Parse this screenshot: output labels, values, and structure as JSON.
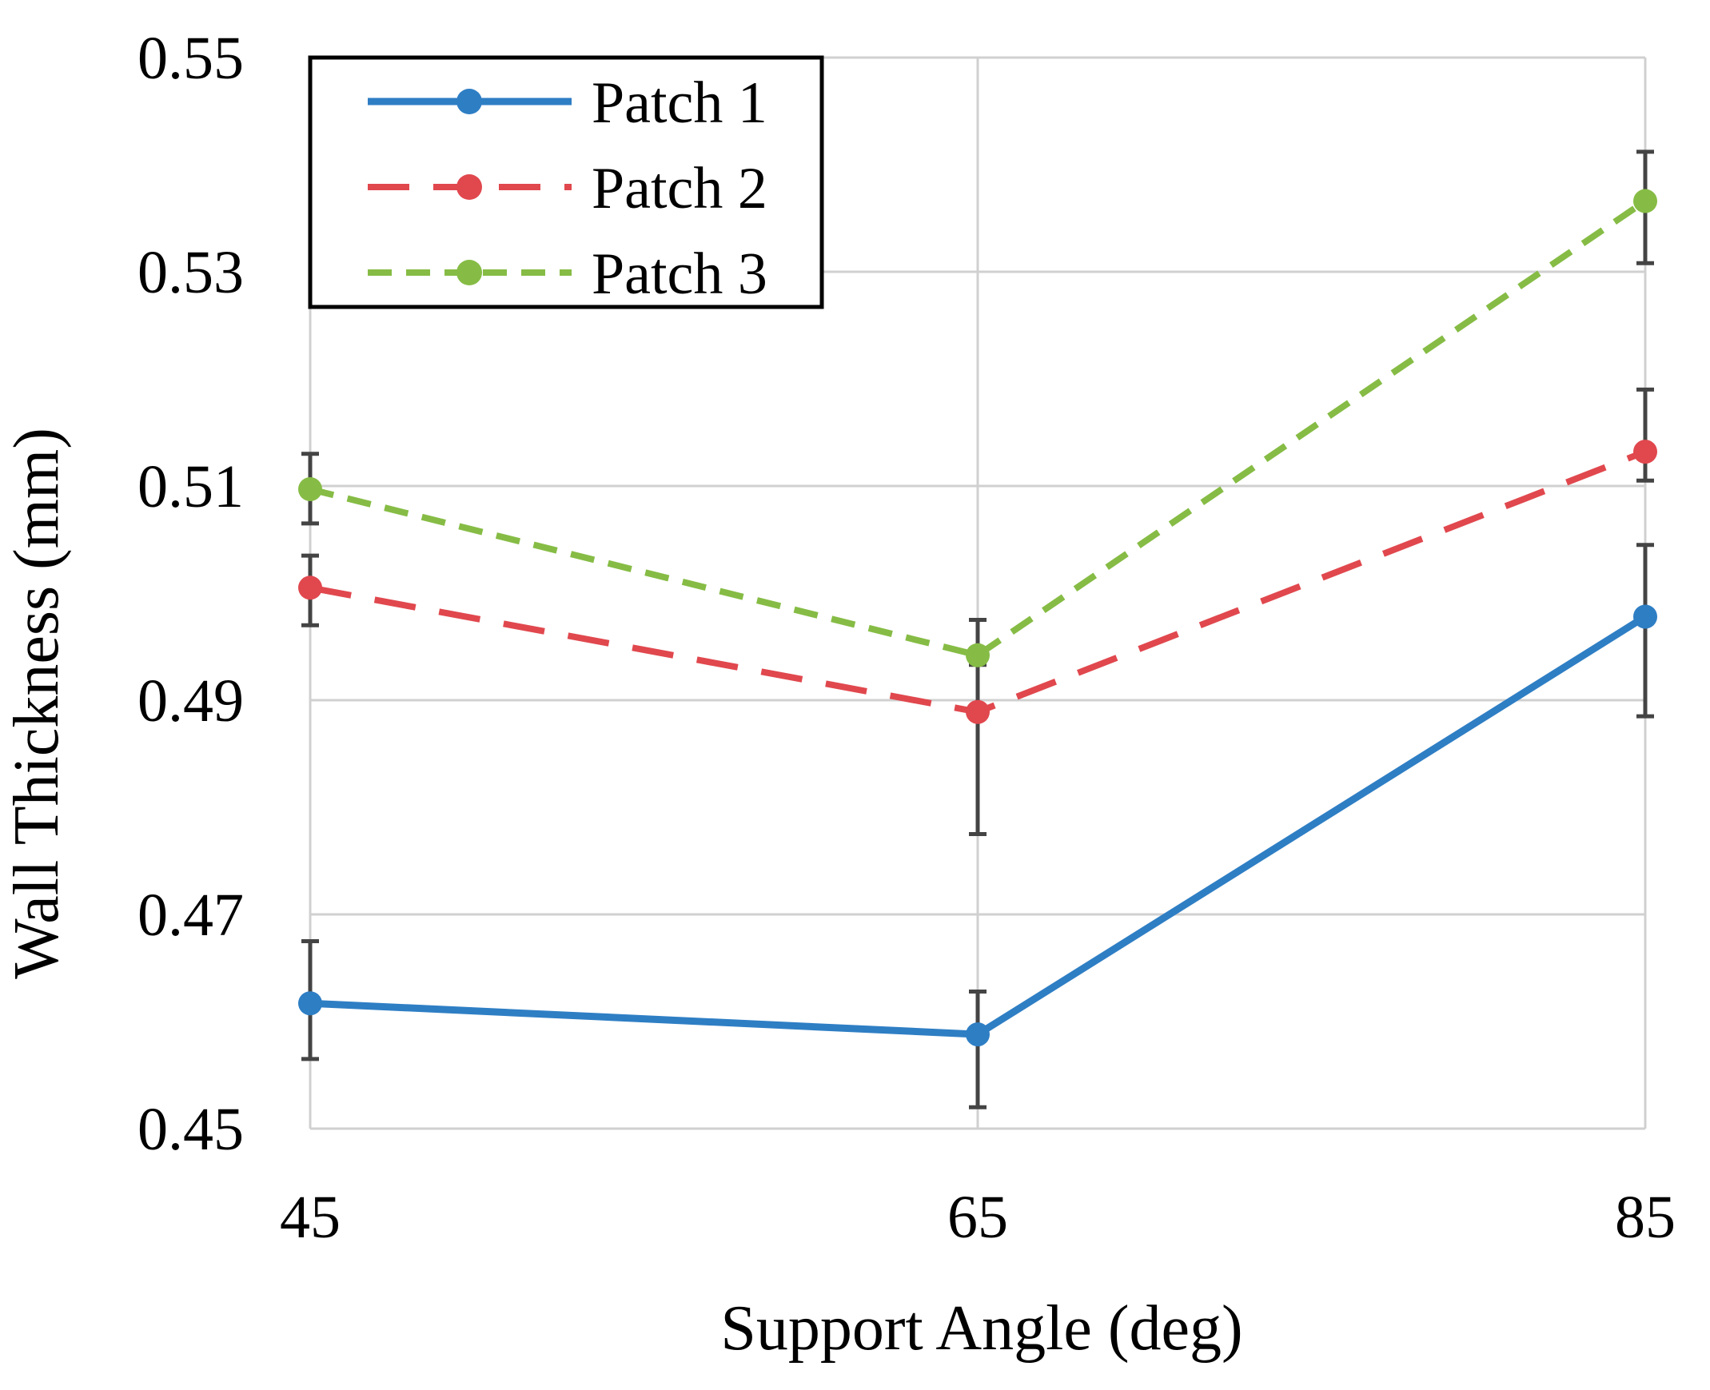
{
  "chart_data": {
    "type": "line",
    "title": "",
    "xlabel": "Support Angle (deg)",
    "ylabel": "Wall Thickness (mm)",
    "x": [
      45,
      65,
      85
    ],
    "x_tick_labels": [
      "45",
      "65",
      "85"
    ],
    "y_tick_labels": [
      "0.45",
      "0.47",
      "0.49",
      "0.51",
      "0.53",
      "0.55"
    ],
    "xlim": [
      45,
      85
    ],
    "ylim": [
      0.45,
      0.55
    ],
    "grid": true,
    "legend_position": "top-left",
    "series": [
      {
        "name": "Patch 1",
        "values": [
          0.4617,
          0.4588,
          0.4978
        ],
        "error_low": [
          0.4565,
          0.452,
          0.4885
        ],
        "error_high": [
          0.4675,
          0.4628,
          0.5045
        ],
        "color": "#2E7EC4",
        "line_style": "solid"
      },
      {
        "name": "Patch 2",
        "values": [
          0.5005,
          0.4889,
          0.5132
        ],
        "error_low": [
          0.497,
          0.4775,
          0.5105
        ],
        "error_high": [
          0.5035,
          0.4948,
          0.519
        ],
        "color": "#E0484E",
        "line_style": "dashed"
      },
      {
        "name": "Patch 3",
        "values": [
          0.5097,
          0.4942,
          0.5366
        ],
        "error_low": [
          0.5065,
          0.4933,
          0.5308
        ],
        "error_high": [
          0.513,
          0.4975,
          0.5412
        ],
        "color": "#86BC45",
        "line_style": "short-dashed"
      }
    ]
  }
}
